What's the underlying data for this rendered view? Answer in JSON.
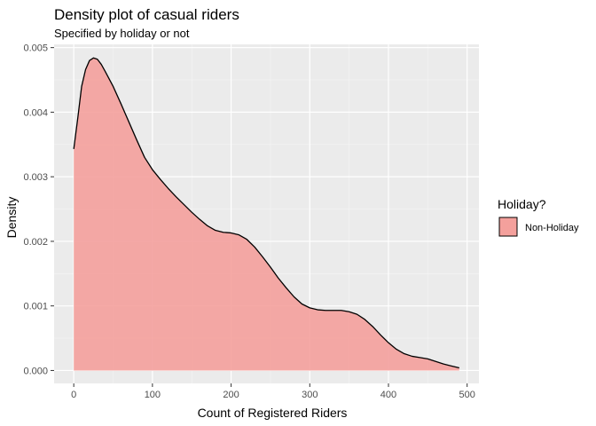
{
  "chart_data": {
    "type": "area",
    "title": "Density plot of casual riders",
    "subtitle": "Specified by holiday or not",
    "xlabel": "Count of Registered Riders",
    "ylabel": "Density",
    "xlim": [
      -25,
      515
    ],
    "ylim": [
      -0.0002,
      0.00505
    ],
    "x_ticks": [
      0,
      100,
      200,
      300,
      400,
      500
    ],
    "x_tick_labels": [
      "0",
      "100",
      "200",
      "300",
      "400",
      "500"
    ],
    "y_ticks": [
      0,
      0.001,
      0.002,
      0.003,
      0.004,
      0.005
    ],
    "y_tick_labels": [
      "0.000",
      "0.001",
      "0.002",
      "0.003",
      "0.004",
      "0.005"
    ],
    "legend": {
      "title": "Holiday?",
      "position": "right",
      "entries": [
        {
          "label": "Non-Holiday",
          "color": "#f4a09c"
        }
      ]
    },
    "series": [
      {
        "name": "Non-Holiday",
        "fill": "#f4a09c",
        "stroke": "#000000",
        "x": [
          0,
          5,
          10,
          15,
          20,
          25,
          30,
          35,
          40,
          50,
          60,
          70,
          80,
          90,
          100,
          110,
          120,
          130,
          140,
          150,
          160,
          170,
          180,
          190,
          200,
          210,
          220,
          230,
          240,
          250,
          260,
          270,
          280,
          290,
          300,
          310,
          320,
          330,
          340,
          350,
          360,
          370,
          380,
          390,
          400,
          410,
          420,
          430,
          440,
          450,
          460,
          470,
          480,
          490
        ],
        "y": [
          0.00343,
          0.0039,
          0.0044,
          0.00466,
          0.0048,
          0.00484,
          0.00482,
          0.00474,
          0.00463,
          0.0044,
          0.00413,
          0.00385,
          0.00357,
          0.0033,
          0.00311,
          0.00296,
          0.00282,
          0.00269,
          0.00257,
          0.00245,
          0.00234,
          0.00224,
          0.00217,
          0.00214,
          0.00213,
          0.0021,
          0.00203,
          0.00191,
          0.00176,
          0.0016,
          0.00143,
          0.00128,
          0.00114,
          0.00103,
          0.00097,
          0.00094,
          0.00093,
          0.00093,
          0.00093,
          0.00091,
          0.00087,
          0.00079,
          0.00068,
          0.00055,
          0.00043,
          0.00033,
          0.00026,
          0.00022,
          0.0002,
          0.00018,
          0.00014,
          0.0001,
          7e-05,
          4e-05
        ]
      }
    ]
  },
  "colors": {
    "panel_background": "#ebebeb",
    "grid_major": "#ffffff",
    "grid_minor": "#f5f5f5",
    "text": "#000000",
    "tick_text": "#4d4d4d",
    "tick_mark": "#333333"
  }
}
